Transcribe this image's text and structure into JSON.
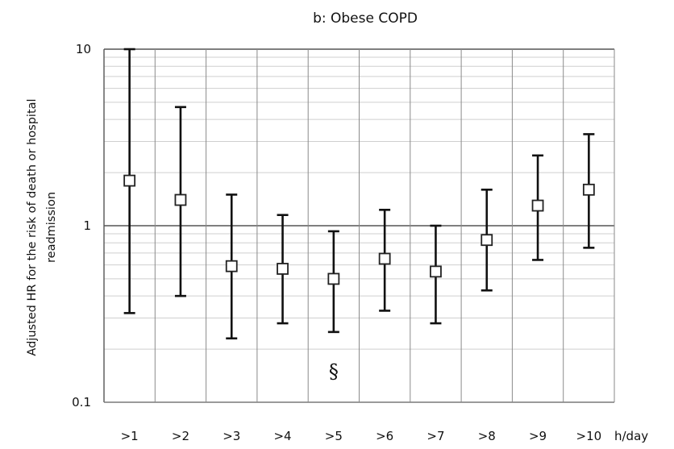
{
  "chart_data": {
    "type": "scatter",
    "title": "b: Obese COPD",
    "ylabel_line1": "Adjusted HR for the risk of death or hospital",
    "ylabel_line2": "readmission",
    "xunit": "h/day",
    "yscale": "log",
    "ylim": [
      0.1,
      10
    ],
    "yticks": [
      "10",
      "1",
      "0.1"
    ],
    "categories": [
      ">1",
      ">2",
      ">3",
      ">4",
      ">5",
      ">6",
      ">7",
      ">8",
      ">9",
      ">10"
    ],
    "hr": [
      1.8,
      1.4,
      0.59,
      0.57,
      0.5,
      0.65,
      0.55,
      0.83,
      1.3,
      1.6
    ],
    "ci_lower": [
      0.32,
      0.4,
      0.23,
      0.28,
      0.25,
      0.33,
      0.28,
      0.43,
      0.64,
      0.75
    ],
    "ci_upper": [
      10.0,
      4.7,
      1.5,
      1.15,
      0.93,
      1.23,
      1.0,
      1.6,
      2.5,
      3.3
    ],
    "annotation": {
      "text": "§",
      "category": ">5"
    },
    "grid": true,
    "legend": "none"
  }
}
